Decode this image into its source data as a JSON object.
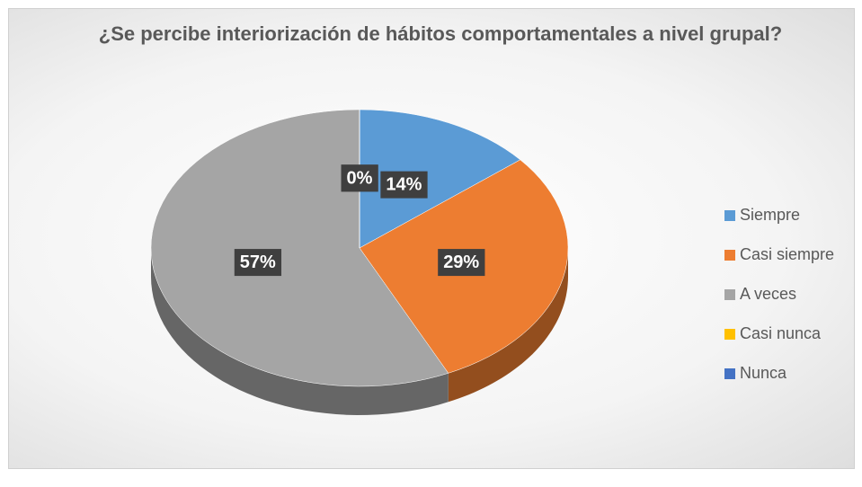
{
  "chart_data": {
    "type": "pie",
    "title": "¿Se percibe interiorización de hábitos comportamentales a nivel grupal?",
    "categories": [
      "Siempre",
      "Casi siempre",
      "A veces",
      "Casi nunca",
      "Nunca"
    ],
    "values": [
      14,
      29,
      57,
      0,
      0
    ],
    "value_labels": [
      "14%",
      "29%",
      "57%",
      "0%",
      "0%"
    ],
    "colors": [
      "#5b9bd5",
      "#ed7d31",
      "#a5a5a5",
      "#ffc000",
      "#4472c4"
    ],
    "legend": "right"
  }
}
